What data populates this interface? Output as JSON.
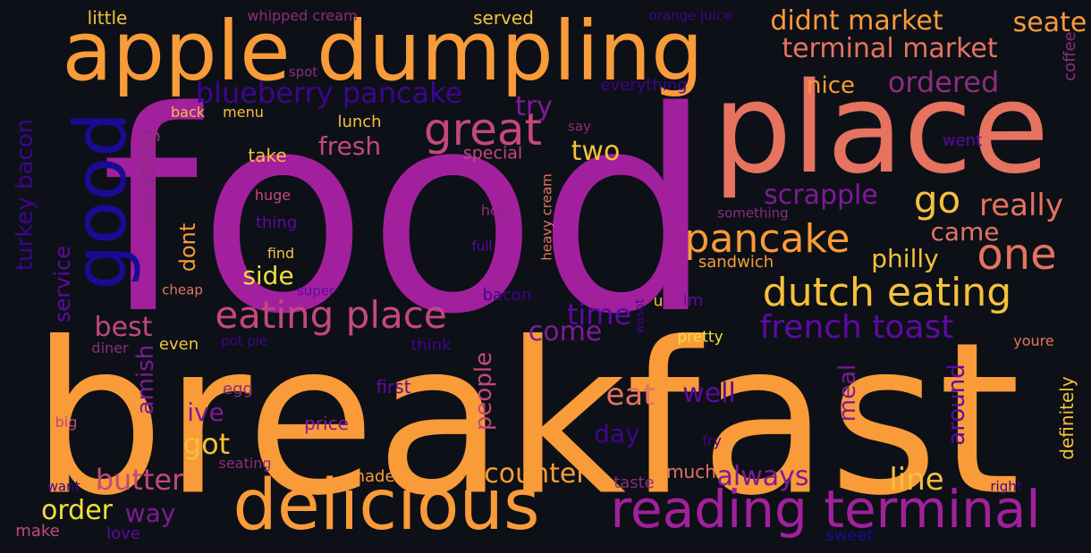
{
  "palette": {
    "background": "#0d1017",
    "orange": "#f99b38",
    "salmon": "#e5735f",
    "magenta": "#a2209e",
    "rose": "#c4487b",
    "navy": "#1a0b94",
    "indigo": "#3e058e",
    "violet": "#5d0aa3",
    "plum": "#7e1b98",
    "yellow": "#f0e03b",
    "gold": "#f5c13a",
    "wine": "#8b2d7d"
  },
  "words": [
    {
      "text": "food",
      "color": "#a2209e",
      "vertical": false
    },
    {
      "text": "breakfast",
      "color": "#f99b38",
      "vertical": false
    },
    {
      "text": "place",
      "color": "#e5735f",
      "vertical": false
    },
    {
      "text": "apple dumpling",
      "color": "#f99b38",
      "vertical": false
    },
    {
      "text": "good",
      "color": "#1a0b94",
      "vertical": true
    },
    {
      "text": "delicious",
      "color": "#f99b38",
      "vertical": false
    },
    {
      "text": "reading terminal",
      "color": "#a2209e",
      "vertical": false
    },
    {
      "text": "eating place",
      "color": "#c4487b",
      "vertical": false
    },
    {
      "text": "dutch eating",
      "color": "#f5c13a",
      "vertical": false
    },
    {
      "text": "pancake",
      "color": "#f99b38",
      "vertical": false
    },
    {
      "text": "great",
      "color": "#c4487b",
      "vertical": false
    },
    {
      "text": "blueberry pancake",
      "color": "#3e058e",
      "vertical": false
    },
    {
      "text": "terminal market",
      "color": "#e5735f",
      "vertical": false
    },
    {
      "text": "didnt market",
      "color": "#f99b38",
      "vertical": false
    },
    {
      "text": "seate",
      "color": "#f99b38",
      "vertical": false
    },
    {
      "text": "ordered",
      "color": "#8b2d7d",
      "vertical": false
    },
    {
      "text": "nice",
      "color": "#f99b38",
      "vertical": false
    },
    {
      "text": "french toast",
      "color": "#5d0aa3",
      "vertical": false
    },
    {
      "text": "one",
      "color": "#e5735f",
      "vertical": false
    },
    {
      "text": "go",
      "color": "#f5c13a",
      "vertical": false
    },
    {
      "text": "really",
      "color": "#e5735f",
      "vertical": false
    },
    {
      "text": "scrapple",
      "color": "#7e1b98",
      "vertical": false
    },
    {
      "text": "came",
      "color": "#e5735f",
      "vertical": false
    },
    {
      "text": "philly",
      "color": "#f5c13a",
      "vertical": false
    },
    {
      "text": "fresh",
      "color": "#c4487b",
      "vertical": false
    },
    {
      "text": "try",
      "color": "#7e1b98",
      "vertical": false
    },
    {
      "text": "two",
      "color": "#f5c13a",
      "vertical": false
    },
    {
      "text": "time",
      "color": "#5d0aa3",
      "vertical": false
    },
    {
      "text": "come",
      "color": "#7e1b98",
      "vertical": false
    },
    {
      "text": "eat",
      "color": "#e5735f",
      "vertical": false
    },
    {
      "text": "well",
      "color": "#5d0aa3",
      "vertical": false
    },
    {
      "text": "best",
      "color": "#c4487b",
      "vertical": false
    },
    {
      "text": "side",
      "color": "#f0e03b",
      "vertical": false
    },
    {
      "text": "got",
      "color": "#f5c13a",
      "vertical": false
    },
    {
      "text": "ive",
      "color": "#7e1b98",
      "vertical": false
    },
    {
      "text": "butter",
      "color": "#c4487b",
      "vertical": false
    },
    {
      "text": "order",
      "color": "#f0e03b",
      "vertical": false
    },
    {
      "text": "way",
      "color": "#7e1b98",
      "vertical": false
    },
    {
      "text": "counter",
      "color": "#f99b38",
      "vertical": false
    },
    {
      "text": "always",
      "color": "#7e1b98",
      "vertical": false
    },
    {
      "text": "line",
      "color": "#f5c13a",
      "vertical": false
    },
    {
      "text": "day",
      "color": "#3e058e",
      "vertical": false
    },
    {
      "text": "turkey bacon",
      "color": "#3e058e",
      "vertical": true
    },
    {
      "text": "service",
      "color": "#5d0aa3",
      "vertical": true
    },
    {
      "text": "amazing",
      "color": "#8b2d7d",
      "vertical": true
    },
    {
      "text": "amish",
      "color": "#7e1b98",
      "vertical": true
    },
    {
      "text": "dont",
      "color": "#f99b38",
      "vertical": true
    },
    {
      "text": "people",
      "color": "#c4487b",
      "vertical": true
    },
    {
      "text": "meal",
      "color": "#7e1b98",
      "vertical": true
    },
    {
      "text": "around",
      "color": "#5d0aa3",
      "vertical": true
    },
    {
      "text": "definitely",
      "color": "#f5c13a",
      "vertical": true
    },
    {
      "text": "coffee",
      "color": "#8b2d7d",
      "vertical": true
    },
    {
      "text": "heavy cream",
      "color": "#e5735f",
      "vertical": true
    },
    {
      "text": "wasnt",
      "color": "#3e058e",
      "vertical": true
    },
    {
      "text": "little",
      "color": "#f5c13a",
      "vertical": false
    },
    {
      "text": "whipped cream",
      "color": "#8b2d7d",
      "vertical": false
    },
    {
      "text": "served",
      "color": "#f5c13a",
      "vertical": false
    },
    {
      "text": "orange juice",
      "color": "#3e058e",
      "vertical": false
    },
    {
      "text": "spot",
      "color": "#8b2d7d",
      "vertical": false
    },
    {
      "text": "everything",
      "color": "#3e058e",
      "vertical": false
    },
    {
      "text": "back",
      "color": "#f5c13a",
      "vertical": false
    },
    {
      "text": "menu",
      "color": "#f5c13a",
      "vertical": false
    },
    {
      "text": "lunch",
      "color": "#f5c13a",
      "vertical": false
    },
    {
      "text": "say",
      "color": "#8b2d7d",
      "vertical": false
    },
    {
      "text": "went",
      "color": "#5d0aa3",
      "vertical": false
    },
    {
      "text": "take",
      "color": "#f5c13a",
      "vertical": false
    },
    {
      "text": "special",
      "color": "#c4487b",
      "vertical": false
    },
    {
      "text": "huge",
      "color": "#c4487b",
      "vertical": false
    },
    {
      "text": "thing",
      "color": "#5d0aa3",
      "vertical": false
    },
    {
      "text": "hot",
      "color": "#8b2d7d",
      "vertical": false
    },
    {
      "text": "something",
      "color": "#8b2d7d",
      "vertical": false
    },
    {
      "text": "find",
      "color": "#f5c13a",
      "vertical": false
    },
    {
      "text": "full",
      "color": "#5d0aa3",
      "vertical": false
    },
    {
      "text": "sandwich",
      "color": "#f99b38",
      "vertical": false
    },
    {
      "text": "cheap",
      "color": "#e5735f",
      "vertical": false
    },
    {
      "text": "super",
      "color": "#5d0aa3",
      "vertical": false
    },
    {
      "text": "bacon",
      "color": "#3e058e",
      "vertical": false
    },
    {
      "text": "u",
      "color": "#f5c13a",
      "vertical": false
    },
    {
      "text": "im",
      "color": "#5d0aa3",
      "vertical": false
    },
    {
      "text": "diner",
      "color": "#8b2d7d",
      "vertical": false
    },
    {
      "text": "even",
      "color": "#f5c13a",
      "vertical": false
    },
    {
      "text": "pot pie",
      "color": "#3e058e",
      "vertical": false
    },
    {
      "text": "think",
      "color": "#3e058e",
      "vertical": false
    },
    {
      "text": "pretty",
      "color": "#f0e03b",
      "vertical": false
    },
    {
      "text": "youre",
      "color": "#e5735f",
      "vertical": false
    },
    {
      "text": "egg",
      "color": "#8b2d7d",
      "vertical": false
    },
    {
      "text": "first",
      "color": "#5d0aa3",
      "vertical": false
    },
    {
      "text": "big",
      "color": "#c4487b",
      "vertical": false
    },
    {
      "text": "price",
      "color": "#7e1b98",
      "vertical": false
    },
    {
      "text": "fry",
      "color": "#3e058e",
      "vertical": false
    },
    {
      "text": "seating",
      "color": "#8b2d7d",
      "vertical": false
    },
    {
      "text": "made",
      "color": "#f99b38",
      "vertical": false
    },
    {
      "text": "much",
      "color": "#e5735f",
      "vertical": false
    },
    {
      "text": "taste",
      "color": "#8b2d7d",
      "vertical": false
    },
    {
      "text": "want",
      "color": "#3e058e",
      "vertical": false
    },
    {
      "text": "right",
      "color": "#3e058e",
      "vertical": false
    },
    {
      "text": "make",
      "color": "#c4487b",
      "vertical": false
    },
    {
      "text": "love",
      "color": "#5d0aa3",
      "vertical": false
    },
    {
      "text": "sweet",
      "color": "#1a0b94",
      "vertical": false
    }
  ]
}
